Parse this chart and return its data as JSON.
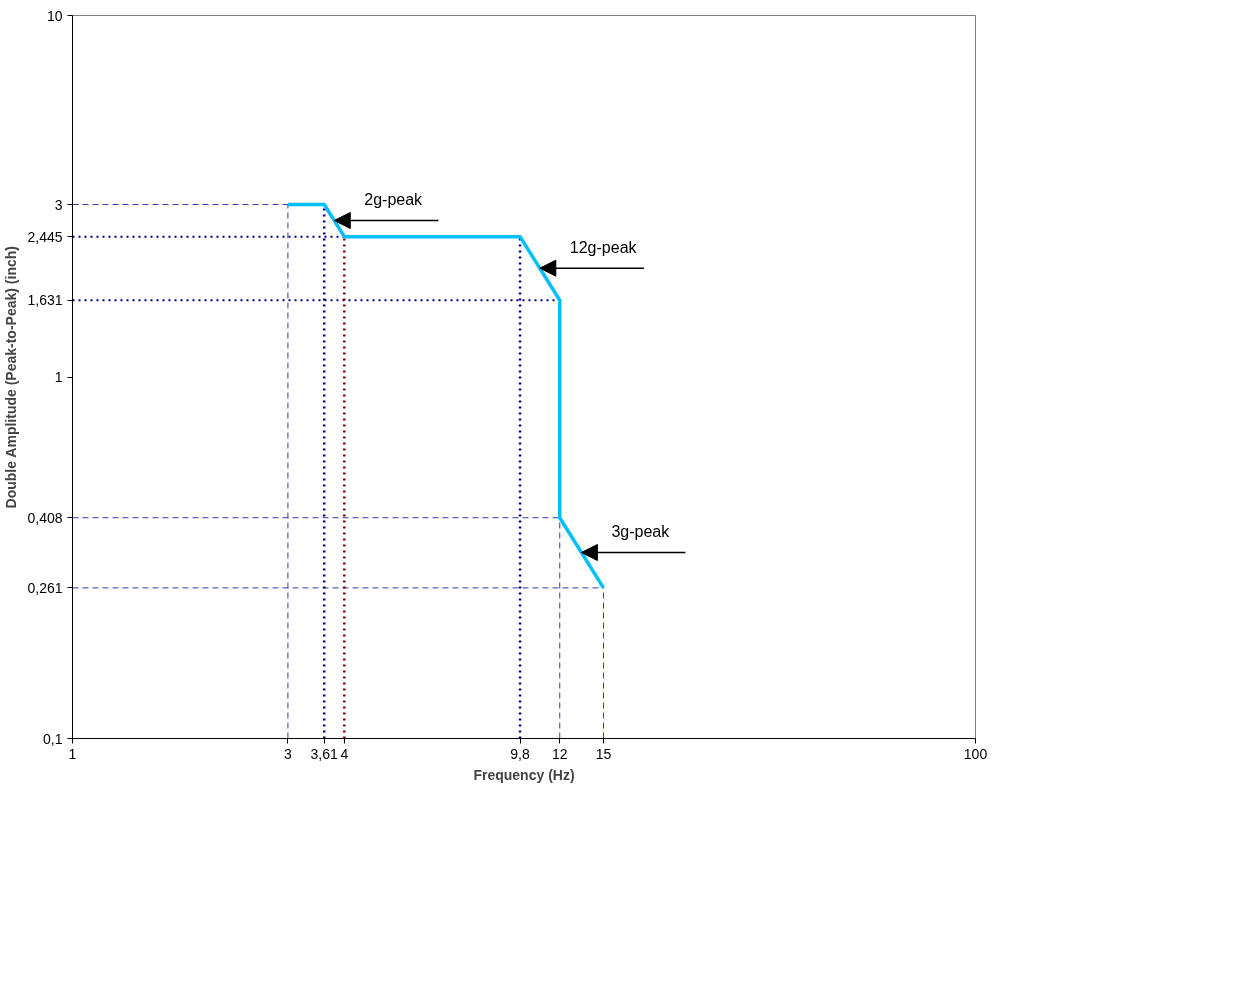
{
  "chart_data": {
    "type": "line",
    "xlabel": "Frequency (Hz)",
    "ylabel": "Double Amplitude (Peak-to-Peak) (inch)",
    "log": "xy",
    "grid": false,
    "marker": "none",
    "line_style": "solid",
    "x": [
      3,
      3.61,
      4,
      9.8,
      12,
      12,
      15
    ],
    "series": [
      {
        "color": "#00bfff",
        "values": [
          3,
          3,
          2.445,
          2.445,
          1.631,
          0.408,
          0.261
        ]
      }
    ],
    "xlim": [
      1,
      100
    ],
    "xticks": [
      1,
      3,
      {
        "value": 3.61,
        "label": "3,61"
      },
      4,
      {
        "value": 9.8,
        "label": "9,8"
      },
      12,
      15,
      100
    ],
    "ylim": [
      0.1,
      10
    ],
    "yticks": [
      {
        "value": 0.1,
        "label": "0,1"
      },
      {
        "value": 0.261,
        "label": "0,261"
      },
      {
        "value": 0.408,
        "label": "0,408"
      },
      1,
      {
        "value": 1.631,
        "label": "1,631"
      },
      {
        "value": 2.445,
        "label": "2,445"
      },
      3,
      10
    ],
    "ref_lines": [
      {
        "axis": "y",
        "value": 3,
        "color": "#3a3aa8",
        "line_style": "dashed"
      },
      {
        "axis": "y",
        "value": 2.445,
        "color": "#000080",
        "line_style": "dotted"
      },
      {
        "axis": "y",
        "value": 1.631,
        "color": "#000080",
        "line_style": "dotted"
      },
      {
        "axis": "y",
        "value": 0.408,
        "color": "#3a3aa8",
        "line_style": "dashed"
      },
      {
        "axis": "y",
        "value": 0.261,
        "color": "#3a3aa8",
        "line_style": "dashed"
      },
      {
        "axis": "x",
        "value": 3,
        "color": "#3a3aa8",
        "line_style": "dashed"
      },
      {
        "axis": "x",
        "value": 3.61,
        "color": "#000080",
        "line_style": "dotted"
      },
      {
        "axis": "x",
        "value": 4,
        "color": "#800000",
        "line_style": "dotted"
      },
      {
        "axis": "x",
        "value": 9.8,
        "color": "#000080",
        "line_style": "dotted"
      },
      {
        "axis": "x",
        "value": 12,
        "color": "#3a3aa8",
        "line_style": "dashed"
      },
      {
        "axis": "x",
        "value": 15,
        "color": "#3a3aa8",
        "line_style": "dashed"
      }
    ],
    "annotations": [
      {
        "text": "2g-peak",
        "x": 3.8,
        "y": 2.71
      },
      {
        "text": "12g-peak",
        "x": 10.84,
        "y": 2.0
      },
      {
        "text": "3g-peak",
        "x": 13.4,
        "y": 0.327
      }
    ]
  }
}
